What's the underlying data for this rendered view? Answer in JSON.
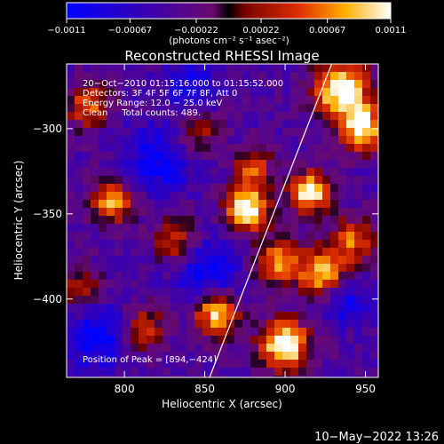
{
  "chart_data": {
    "type": "heatmap",
    "title": "Reconstructed RHESSI Image",
    "xlabel": "Heliocentric X (arcsec)",
    "ylabel": "Heliocentric Y (arcsec)",
    "xlim": [
      764,
      958
    ],
    "ylim": [
      -446,
      -262
    ],
    "x_ticks": [
      800,
      850,
      900,
      950
    ],
    "y_ticks": [
      -300,
      -350,
      -400
    ],
    "x_tick_labels": [
      "800",
      "850",
      "900",
      "950"
    ],
    "y_tick_labels": [
      "−300",
      "−350",
      "−400"
    ],
    "colorbar": {
      "range": [
        -0.0011,
        0.0011
      ],
      "ticks": [
        -0.0011,
        -0.00067,
        -0.00022,
        0.00022,
        0.00067,
        0.0011
      ],
      "tick_labels": [
        "−0.0011",
        "−0.00067",
        "−0.00022",
        "0.00022",
        "0.00067",
        "0.0011"
      ],
      "unit_label": "(photons cm⁻² s⁻¹ asec⁻²)"
    },
    "annotations": [
      "20−Oct−2010 01:15:16.000 to 01:15:52.000",
      "Detectors: 3F 4F 5F 6F 7F 8F, Att 0",
      "Energy Range: 12.0 − 25.0 keV",
      "Clean     Total counts: 489."
    ],
    "peak_label": "Position of Peak = [894,−424]",
    "peak": [
      894,
      -424
    ],
    "limb_line": [
      [
        853,
        -446
      ],
      [
        929,
        -262
      ]
    ],
    "grid": false
  },
  "footer_date": "10−May−2022 13:26"
}
